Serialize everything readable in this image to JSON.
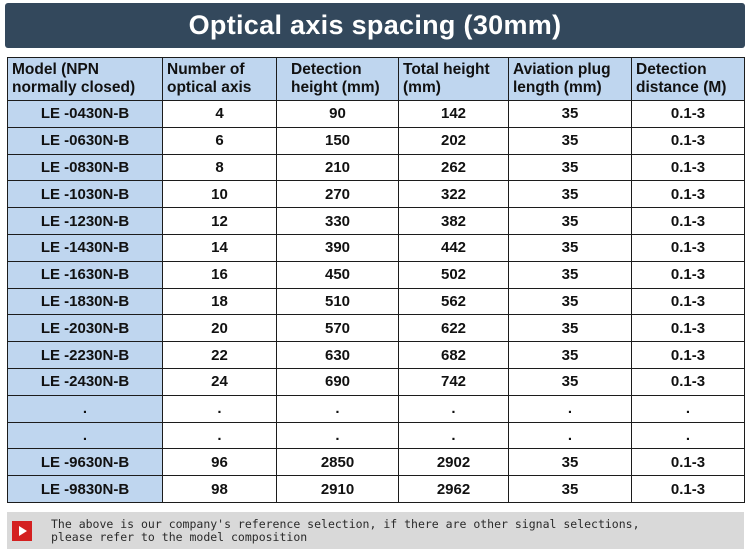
{
  "title": "Optical axis spacing (30mm)",
  "columns": [
    "Model (NPN normally closed)",
    "Number of optical axis",
    "Detection height (mm)",
    "Total height (mm)",
    "Aviation plug length (mm)",
    "Detection distance (M)"
  ],
  "rows": [
    [
      "LE -0430N-B",
      "4",
      "90",
      "142",
      "35",
      "0.1-3"
    ],
    [
      "LE -0630N-B",
      "6",
      "150",
      "202",
      "35",
      "0.1-3"
    ],
    [
      "LE -0830N-B",
      "8",
      "210",
      "262",
      "35",
      "0.1-3"
    ],
    [
      "LE -1030N-B",
      "10",
      "270",
      "322",
      "35",
      "0.1-3"
    ],
    [
      "LE -1230N-B",
      "12",
      "330",
      "382",
      "35",
      "0.1-3"
    ],
    [
      "LE -1430N-B",
      "14",
      "390",
      "442",
      "35",
      "0.1-3"
    ],
    [
      "LE -1630N-B",
      "16",
      "450",
      "502",
      "35",
      "0.1-3"
    ],
    [
      "LE -1830N-B",
      "18",
      "510",
      "562",
      "35",
      "0.1-3"
    ],
    [
      "LE -2030N-B",
      "20",
      "570",
      "622",
      "35",
      "0.1-3"
    ],
    [
      "LE -2230N-B",
      "22",
      "630",
      "682",
      "35",
      "0.1-3"
    ],
    [
      "LE -2430N-B",
      "24",
      "690",
      "742",
      "35",
      "0.1-3"
    ],
    [
      ".",
      ".",
      ".",
      ".",
      ".",
      "."
    ],
    [
      ".",
      ".",
      ".",
      ".",
      ".",
      "."
    ],
    [
      "LE -9630N-B",
      "96",
      "2850",
      "2902",
      "35",
      "0.1-3"
    ],
    [
      "LE -9830N-B",
      "98",
      "2910",
      "2962",
      "35",
      "0.1-3"
    ]
  ],
  "note": {
    "icon": "play-icon",
    "line1": "The above is our company's reference selection, if there are other signal selections,",
    "line2": "please refer to the model composition"
  }
}
